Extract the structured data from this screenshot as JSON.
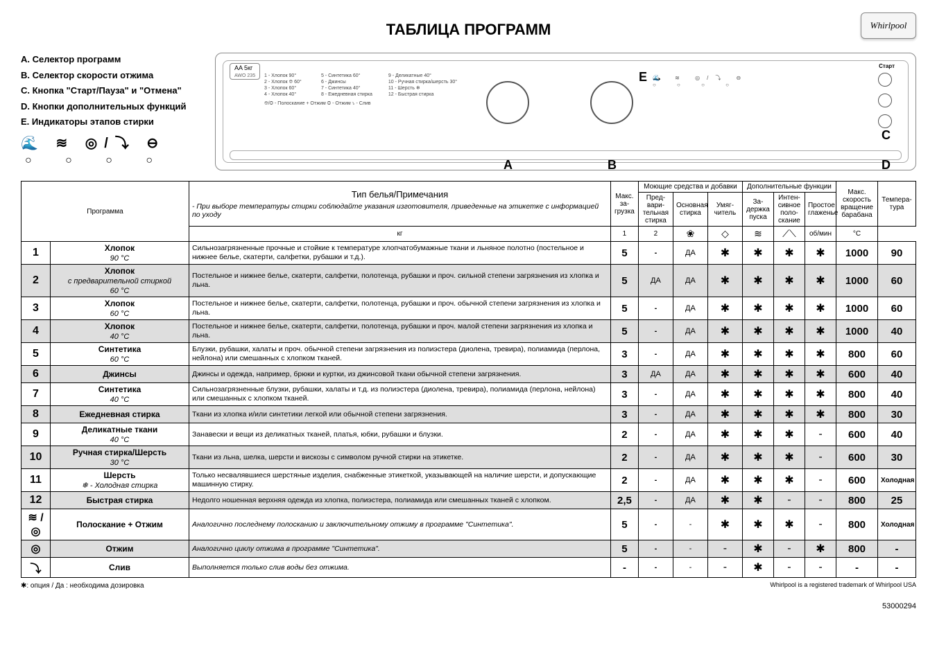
{
  "brand": "Whirlpool",
  "title": "ТАБЛИЦА ПРОГРАММ",
  "legend": {
    "A": "Селектор программ",
    "B": "Селектор скорости отжима",
    "C": "Кнопка \"Старт/Пауза\" и \"Отмена\"",
    "D": "Кнопки дополнительных функций",
    "E": "Индикаторы этапов стирки"
  },
  "panel": {
    "model": "AA  5кг",
    "model_sub": "AWO 235",
    "start_label": "Старт",
    "labels": {
      "A": "A",
      "B": "B",
      "C": "C",
      "D": "D",
      "E": "E"
    },
    "prog_list_left": [
      "1 - Хлопок  90°",
      "2 - Хлопок ⎊ 60°",
      "3 - Хлопок  60°",
      "4 - Хлопок  40°"
    ],
    "prog_list_mid": [
      "5 - Синтетика  60°",
      "6 - Джинсы",
      "7 - Синтетика  40°",
      "8 - Ежедневная стирка"
    ],
    "prog_list_right": [
      "9 - Деликатные  40°",
      "10 - Ручная стирка/шерсть 30°",
      "11 - Шерсть  ❄",
      "12 - Быстрая стирка"
    ],
    "bottom_text": "⎊/◎ - Полоскание + Отжим   ◎ - Отжим   ⤵ - Слив"
  },
  "headers": {
    "program": "Программа",
    "notes_title": "Тип белья/Примечания",
    "notes_sub": "- При выборе температуры стирки соблюдайте указания изготовителя, приведенные на этикетке с информацией по уходу",
    "load": "Макс. за-грузка",
    "load_unit": "кг",
    "detergents_group": "Моющие средства и добавки",
    "det_pre": "Пред-вари-тельная стирка",
    "det_pre_num": "1",
    "det_main": "Основная стирка",
    "det_main_num": "2",
    "det_soft": "Умяг-читель",
    "functions_group": "Дополнительные функции",
    "fn_delay": "За-держка пуска",
    "fn_rinse": "Интен-сивное поло-скание",
    "fn_iron": "Простое глаженье",
    "speed": "Макс. скорость вращение барабана",
    "speed_unit": "об/мин",
    "temp": "Темпера-тура",
    "temp_unit": "°C"
  },
  "icons": {
    "softener": "❀",
    "delay": "◇",
    "rinse": "≋",
    "iron": "⟋⟍"
  },
  "yes": "ДА",
  "snow": "✱",
  "dash": "-",
  "cold": "Холодная",
  "rows": [
    {
      "num": "1",
      "alt": false,
      "name": "Хлопок",
      "sub": "90 °C",
      "notes": "Сильнозагрязненные прочные и стойкие к температуре хлопчатобумажные ткани и льняное полотно (постельное и нижнее белье, скатерти, салфетки, рубашки и т.д.).",
      "load": "5",
      "pre": "-",
      "main": "ДА",
      "soft": "✱",
      "delay": "✱",
      "rinse": "✱",
      "iron": "✱",
      "speed": "1000",
      "temp": "90"
    },
    {
      "num": "2",
      "alt": true,
      "name": "Хлопок",
      "sub": "с предварительной стиркой\n60 °C",
      "notes": "Постельное и нижнее белье, скатерти, салфетки, полотенца, рубашки и проч. сильной степени загрязнения из хлопка и льна.",
      "load": "5",
      "pre": "ДА",
      "main": "ДА",
      "soft": "✱",
      "delay": "✱",
      "rinse": "✱",
      "iron": "✱",
      "speed": "1000",
      "temp": "60"
    },
    {
      "num": "3",
      "alt": false,
      "name": "Хлопок",
      "sub": "60 °C",
      "notes": "Постельное и нижнее белье, скатерти, салфетки, полотенца, рубашки и проч. обычной степени загрязнения из хлопка и льна.",
      "load": "5",
      "pre": "-",
      "main": "ДА",
      "soft": "✱",
      "delay": "✱",
      "rinse": "✱",
      "iron": "✱",
      "speed": "1000",
      "temp": "60"
    },
    {
      "num": "4",
      "alt": true,
      "name": "Хлопок",
      "sub": "40 °C",
      "notes": "Постельное и нижнее белье, скатерти, салфетки, полотенца, рубашки и проч. малой степени загрязнения из хлопка и льна.",
      "load": "5",
      "pre": "-",
      "main": "ДА",
      "soft": "✱",
      "delay": "✱",
      "rinse": "✱",
      "iron": "✱",
      "speed": "1000",
      "temp": "40"
    },
    {
      "num": "5",
      "alt": false,
      "name": "Синтетика",
      "sub": "60 °C",
      "notes": "Блузки, рубашки, халаты и проч. обычной степени загрязнения из полиэстера (диолена, тревира), полиамида (перлона, нейлона) или смешанных с хлопком тканей.",
      "load": "3",
      "pre": "-",
      "main": "ДА",
      "soft": "✱",
      "delay": "✱",
      "rinse": "✱",
      "iron": "✱",
      "speed": "800",
      "temp": "60"
    },
    {
      "num": "6",
      "alt": true,
      "name": "Джинсы",
      "sub": "",
      "notes": "Джинсы и одежда, например, брюки и куртки, из джинсовой ткани обычной степени загрязнения.",
      "load": "3",
      "pre": "ДА",
      "main": "ДА",
      "soft": "✱",
      "delay": "✱",
      "rinse": "✱",
      "iron": "✱",
      "speed": "600",
      "temp": "40"
    },
    {
      "num": "7",
      "alt": false,
      "name": "Синтетика",
      "sub": "40 °C",
      "notes": "Сильнозагрязненные блузки, рубашки, халаты и т.д. из полиэстера (диолена, тревира), полиамида (перлона, нейлона) или смешанных с хлопком тканей.",
      "load": "3",
      "pre": "-",
      "main": "ДА",
      "soft": "✱",
      "delay": "✱",
      "rinse": "✱",
      "iron": "✱",
      "speed": "800",
      "temp": "40"
    },
    {
      "num": "8",
      "alt": true,
      "name": "Ежедневная стирка",
      "sub": "",
      "notes": "Ткани из хлопка и/или синтетики легкой или обычной степени загрязнения.",
      "load": "3",
      "pre": "-",
      "main": "ДА",
      "soft": "✱",
      "delay": "✱",
      "rinse": "✱",
      "iron": "✱",
      "speed": "800",
      "temp": "30"
    },
    {
      "num": "9",
      "alt": false,
      "name": "Деликатные ткани",
      "sub": "40 °C",
      "notes": "Занавески и вещи из деликатных тканей, платья, юбки, рубашки и блузки.",
      "load": "2",
      "pre": "-",
      "main": "ДА",
      "soft": "✱",
      "delay": "✱",
      "rinse": "✱",
      "iron": "-",
      "speed": "600",
      "temp": "40"
    },
    {
      "num": "10",
      "alt": true,
      "name": "Ручная стирка/Шерсть",
      "sub": "30 °C",
      "notes": "Ткани из льна, шелка, шерсти и вискозы с символом ручной стирки на этикетке.",
      "load": "2",
      "pre": "-",
      "main": "ДА",
      "soft": "✱",
      "delay": "✱",
      "rinse": "✱",
      "iron": "-",
      "speed": "600",
      "temp": "30"
    },
    {
      "num": "11",
      "alt": false,
      "name": "Шерсть",
      "sub": "❄ - Холодная стирка",
      "notes": "Только несвалявшиеся шерстяные изделия, снабженные этикеткой, указывающей на наличие шерсти, и допускающие машинную стирку.",
      "load": "2",
      "pre": "-",
      "main": "ДА",
      "soft": "✱",
      "delay": "✱",
      "rinse": "✱",
      "iron": "-",
      "speed": "600",
      "temp": "Холодная"
    },
    {
      "num": "12",
      "alt": true,
      "name": "Быстрая стирка",
      "sub": "",
      "notes": "Недолго ношенная верхняя одежда из хлопка, полиэстера, полиамида или смешанных тканей с хлопком.",
      "load": "2,5",
      "pre": "-",
      "main": "ДА",
      "soft": "✱",
      "delay": "✱",
      "rinse": "-",
      "iron": "-",
      "speed": "800",
      "temp": "25"
    },
    {
      "num": "≋ / ◎",
      "alt": false,
      "name": "Полоскание + Отжим",
      "sub": "",
      "notes": "Аналогично последнему полосканию и заключительному отжиму в программе \"Синтетика\".",
      "load": "5",
      "pre": "-",
      "main": "-",
      "soft": "✱",
      "delay": "✱",
      "rinse": "✱",
      "iron": "-",
      "speed": "800",
      "temp": "Холодная",
      "italic": true
    },
    {
      "num": "◎",
      "alt": true,
      "name": "Отжим",
      "sub": "",
      "notes": "Аналогично циклу отжима в программе \"Синтетика\".",
      "load": "5",
      "pre": "-",
      "main": "-",
      "soft": "-",
      "delay": "✱",
      "rinse": "-",
      "iron": "✱",
      "speed": "800",
      "temp": "-",
      "italic": true
    },
    {
      "num": "⤵",
      "alt": false,
      "name": "Слив",
      "sub": "",
      "notes": "Выполняется только слив воды без отжима.",
      "load": "-",
      "pre": "-",
      "main": "-",
      "soft": "-",
      "delay": "✱",
      "rinse": "-",
      "iron": "-",
      "speed": "-",
      "temp": "-",
      "italic": true
    }
  ],
  "footnote": "✱: опция / Да : необходима дозировка",
  "trademark": "Whirlpool is a registered trademark of Whirlpool USA",
  "docnum": "53000294"
}
